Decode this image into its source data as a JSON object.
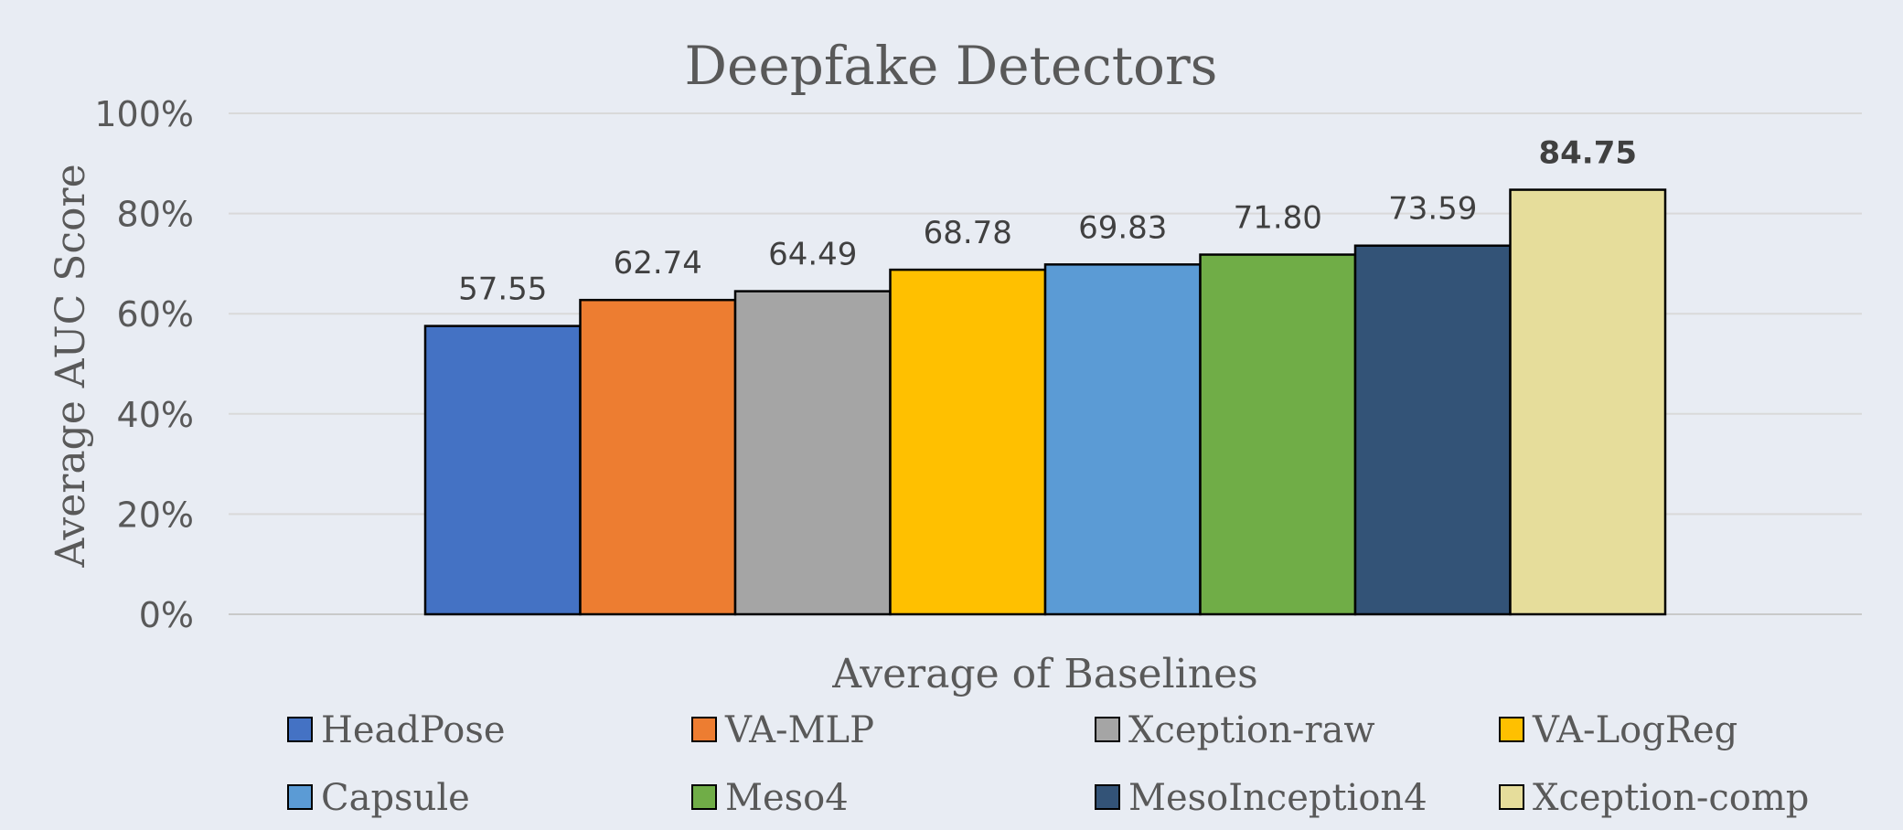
{
  "chart_data": {
    "type": "bar",
    "title": "Deepfake Detectors",
    "xlabel": "Average of Baselines",
    "ylabel": "Average AUC Score",
    "ylim": [
      0,
      100
    ],
    "yticks": [
      "0%",
      "20%",
      "40%",
      "60%",
      "80%",
      "100%"
    ],
    "grid": true,
    "legend_position": "bottom",
    "series": [
      {
        "name": "HeadPose",
        "value": 57.55,
        "label": "57.55",
        "color": "#4472c4",
        "bold": false
      },
      {
        "name": "VA-MLP",
        "value": 62.74,
        "label": "62.74",
        "color": "#ed7d31",
        "bold": false
      },
      {
        "name": "Xception-raw",
        "value": 64.49,
        "label": "64.49",
        "color": "#a5a5a5",
        "bold": false
      },
      {
        "name": "VA-LogReg",
        "value": 68.78,
        "label": "68.78",
        "color": "#ffc000",
        "bold": false
      },
      {
        "name": "Capsule",
        "value": 69.83,
        "label": "69.83",
        "color": "#5b9bd5",
        "bold": false
      },
      {
        "name": "Meso4",
        "value": 71.8,
        "label": "71.80",
        "color": "#70ad47",
        "bold": false
      },
      {
        "name": "MesoInception4",
        "value": 73.59,
        "label": "73.59",
        "color": "#335377",
        "bold": false
      },
      {
        "name": "Xception-comp",
        "value": 84.75,
        "label": "84.75",
        "color": "#e6dd9b",
        "bold": true
      }
    ]
  }
}
